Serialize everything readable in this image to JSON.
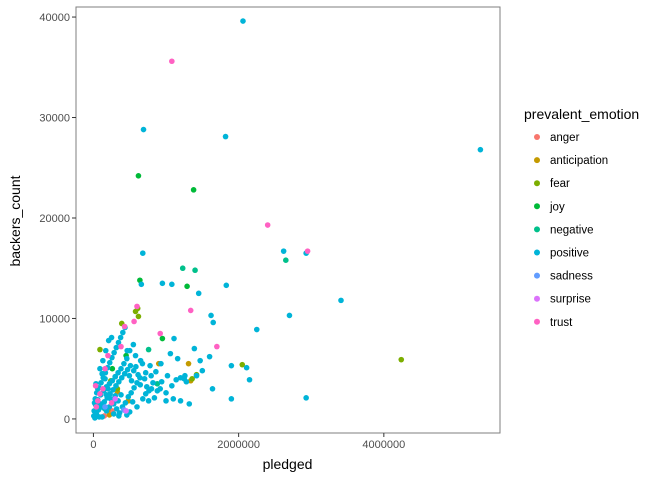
{
  "chart_data": {
    "type": "scatter",
    "title": "",
    "xlabel": "pledged",
    "ylabel": "backers_count",
    "xlim": [
      -240000,
      5600000
    ],
    "ylim": [
      -1400,
      41000
    ],
    "x_ticks": [
      0,
      2000000,
      4000000
    ],
    "x_tick_labels": [
      "0",
      "2000000",
      "4000000"
    ],
    "y_ticks": [
      0,
      10000,
      20000,
      30000,
      40000
    ],
    "y_tick_labels": [
      "0",
      "10000",
      "20000",
      "30000",
      "40000"
    ],
    "grid": false,
    "legend": {
      "title": "prevalent_emotion",
      "position": "right"
    },
    "series": [
      {
        "name": "anger",
        "color": "#F8766D",
        "points": [
          [
            150000,
            300
          ],
          [
            260000,
            800
          ]
        ]
      },
      {
        "name": "anticipation",
        "color": "#C49A00",
        "points": [
          [
            200000,
            900
          ],
          [
            330000,
            2700
          ],
          [
            900000,
            5500
          ],
          [
            1310000,
            5500
          ],
          [
            1340000,
            3800
          ],
          [
            220000,
            400
          ],
          [
            480000,
            1800
          ]
        ]
      },
      {
        "name": "fear",
        "color": "#7CAE00",
        "points": [
          [
            240000,
            3800
          ],
          [
            390000,
            9500
          ],
          [
            620000,
            10200
          ],
          [
            2050000,
            5400
          ],
          [
            4240000,
            5900
          ],
          [
            1360000,
            4000
          ],
          [
            330000,
            3000
          ],
          [
            610000,
            11000
          ],
          [
            90000,
            6900
          ],
          [
            580000,
            10700
          ],
          [
            1420000,
            4400
          ],
          [
            160000,
            1000
          ]
        ]
      },
      {
        "name": "joy",
        "color": "#00BA38",
        "points": [
          [
            620000,
            24200
          ],
          [
            640000,
            13800
          ],
          [
            1290000,
            13200
          ],
          [
            450000,
            6300
          ],
          [
            950000,
            8000
          ],
          [
            260000,
            5000
          ],
          [
            1380000,
            22800
          ]
        ]
      },
      {
        "name": "negative",
        "color": "#00C08B",
        "points": [
          [
            2650000,
            15800
          ],
          [
            1230000,
            15000
          ],
          [
            760000,
            6900
          ],
          [
            1400000,
            14800
          ],
          [
            300000,
            4200
          ],
          [
            880000,
            3500
          ]
        ]
      },
      {
        "name": "positive",
        "color": "#00B4D8",
        "points": [
          [
            2060000,
            39600
          ],
          [
            5330000,
            26800
          ],
          [
            690000,
            28800
          ],
          [
            1820000,
            28100
          ],
          [
            2620000,
            16700
          ],
          [
            2930000,
            16500
          ],
          [
            1620000,
            10300
          ],
          [
            3410000,
            11800
          ],
          [
            2700000,
            10300
          ],
          [
            1830000,
            13300
          ],
          [
            2250000,
            8900
          ],
          [
            1900000,
            5300
          ],
          [
            2930000,
            2100
          ],
          [
            2110000,
            5100
          ],
          [
            1600000,
            6200
          ],
          [
            1470000,
            5800
          ],
          [
            1640000,
            3000
          ],
          [
            2150000,
            3900
          ],
          [
            1900000,
            2000
          ],
          [
            1390000,
            7000
          ],
          [
            1420000,
            4300
          ],
          [
            1260000,
            4300
          ],
          [
            1060000,
            6500
          ],
          [
            1160000,
            6000
          ],
          [
            1200000,
            4100
          ],
          [
            1080000,
            3300
          ],
          [
            1000000,
            2600
          ],
          [
            880000,
            2800
          ],
          [
            820000,
            3600
          ],
          [
            950000,
            13500
          ],
          [
            1080000,
            13400
          ],
          [
            660000,
            13400
          ],
          [
            680000,
            16500
          ],
          [
            1450000,
            12500
          ],
          [
            1650000,
            9600
          ],
          [
            1110000,
            8000
          ],
          [
            930000,
            5500
          ],
          [
            780000,
            5300
          ],
          [
            720000,
            4600
          ],
          [
            650000,
            5800
          ],
          [
            580000,
            6300
          ],
          [
            550000,
            7400
          ],
          [
            500000,
            6800
          ],
          [
            460000,
            6000
          ],
          [
            420000,
            5500
          ],
          [
            380000,
            5000
          ],
          [
            340000,
            4600
          ],
          [
            300000,
            4200
          ],
          [
            260000,
            3800
          ],
          [
            220000,
            3500
          ],
          [
            180000,
            3200
          ],
          [
            140000,
            2800
          ],
          [
            100000,
            2400
          ],
          [
            60000,
            1900
          ],
          [
            30000,
            1400
          ],
          [
            10000,
            800
          ],
          [
            5000,
            300
          ],
          [
            20000,
            100
          ],
          [
            40000,
            500
          ],
          [
            70000,
            900
          ],
          [
            110000,
            1300
          ],
          [
            150000,
            1700
          ],
          [
            190000,
            2100
          ],
          [
            230000,
            2500
          ],
          [
            270000,
            2900
          ],
          [
            310000,
            3300
          ],
          [
            350000,
            3700
          ],
          [
            390000,
            4100
          ],
          [
            430000,
            4500
          ],
          [
            470000,
            4900
          ],
          [
            510000,
            5300
          ],
          [
            130000,
            5800
          ],
          [
            170000,
            6800
          ],
          [
            210000,
            7800
          ],
          [
            250000,
            8100
          ],
          [
            90000,
            5000
          ],
          [
            120000,
            4500
          ],
          [
            160000,
            4000
          ],
          [
            200000,
            3000
          ],
          [
            240000,
            2000
          ],
          [
            280000,
            1500
          ],
          [
            320000,
            1000
          ],
          [
            360000,
            600
          ],
          [
            400000,
            1200
          ],
          [
            440000,
            1600
          ],
          [
            480000,
            2200
          ],
          [
            520000,
            2600
          ],
          [
            560000,
            3100
          ],
          [
            600000,
            3600
          ],
          [
            640000,
            4100
          ],
          [
            680000,
            2000
          ],
          [
            720000,
            2500
          ],
          [
            760000,
            1800
          ],
          [
            800000,
            3000
          ],
          [
            840000,
            2100
          ],
          [
            920000,
            3000
          ],
          [
            1100000,
            2000
          ],
          [
            1200000,
            1800
          ],
          [
            1250000,
            4000
          ],
          [
            1320000,
            1500
          ],
          [
            1000000,
            1800
          ],
          [
            600000,
            1200
          ],
          [
            540000,
            1700
          ],
          [
            500000,
            700
          ],
          [
            460000,
            400
          ],
          [
            420000,
            900
          ],
          [
            80000,
            200
          ],
          [
            50000,
            1000
          ],
          [
            25000,
            2000
          ],
          [
            15000,
            1600
          ],
          [
            45000,
            2600
          ],
          [
            75000,
            3100
          ],
          [
            105000,
            3600
          ],
          [
            135000,
            4100
          ],
          [
            165000,
            4600
          ],
          [
            195000,
            5100
          ],
          [
            225000,
            5600
          ],
          [
            255000,
            6100
          ],
          [
            285000,
            6600
          ],
          [
            315000,
            7100
          ],
          [
            345000,
            7600
          ],
          [
            375000,
            8100
          ],
          [
            405000,
            8600
          ],
          [
            435000,
            9100
          ],
          [
            465000,
            6800
          ],
          [
            495000,
            4300
          ],
          [
            525000,
            3800
          ],
          [
            555000,
            4800
          ],
          [
            585000,
            5200
          ],
          [
            615000,
            4400
          ],
          [
            645000,
            3400
          ],
          [
            675000,
            5500
          ],
          [
            705000,
            4000
          ],
          [
            735000,
            3200
          ],
          [
            765000,
            2800
          ],
          [
            795000,
            4300
          ],
          [
            860000,
            4700
          ],
          [
            940000,
            3700
          ],
          [
            1020000,
            4300
          ],
          [
            1140000,
            3900
          ],
          [
            1280000,
            3700
          ],
          [
            1500000,
            4800
          ],
          [
            380000,
            2400
          ],
          [
            340000,
            1800
          ],
          [
            300000,
            2300
          ],
          [
            260000,
            1700
          ],
          [
            220000,
            1200
          ],
          [
            180000,
            800
          ],
          [
            140000,
            1100
          ],
          [
            100000,
            1500
          ],
          [
            60000,
            3000
          ],
          [
            35000,
            3500
          ],
          [
            280000,
            500
          ],
          [
            350000,
            300
          ],
          [
            120000,
            200
          ],
          [
            180000,
            2400
          ]
        ]
      },
      {
        "name": "sadness",
        "color": "#619CFF",
        "points": [
          [
            160000,
            1200
          ],
          [
            420000,
            900
          ]
        ]
      },
      {
        "name": "surprise",
        "color": "#DB72FB",
        "points": [
          [
            300000,
            2000
          ],
          [
            450000,
            800
          ]
        ]
      },
      {
        "name": "trust",
        "color": "#FF61C3",
        "points": [
          [
            1080000,
            35600
          ],
          [
            2400000,
            19300
          ],
          [
            2950000,
            16700
          ],
          [
            1700000,
            7200
          ],
          [
            1340000,
            10800
          ],
          [
            600000,
            11200
          ],
          [
            560000,
            9700
          ],
          [
            920000,
            8500
          ],
          [
            430000,
            9200
          ],
          [
            380000,
            7200
          ],
          [
            200000,
            6300
          ],
          [
            160000,
            5000
          ],
          [
            130000,
            3000
          ],
          [
            90000,
            2500
          ],
          [
            60000,
            1800
          ],
          [
            30000,
            3300
          ],
          [
            40000,
            1200
          ],
          [
            250000,
            1600
          ]
        ]
      }
    ]
  }
}
